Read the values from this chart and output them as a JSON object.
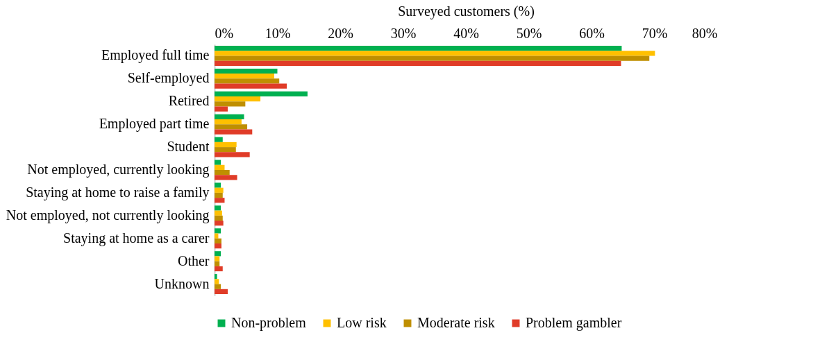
{
  "chart_data": {
    "type": "bar",
    "orientation": "horizontal",
    "xlabel": "Surveyed customers (%)",
    "categories": [
      "Employed full time",
      "Self-employed",
      "Retired",
      "Employed part time",
      "Student",
      "Not employed, currently looking",
      "Staying at home to raise a family",
      "Not employed, not currently looking",
      "Staying at home as a carer",
      "Other",
      "Unknown"
    ],
    "series": [
      {
        "name": "Non-problem",
        "color": "#00b050",
        "values": [
          64.8,
          10.0,
          14.8,
          4.7,
          1.3,
          1.0,
          1.0,
          1.0,
          1.0,
          1.0,
          0.4
        ]
      },
      {
        "name": "Low risk",
        "color": "#ffc000",
        "values": [
          70.1,
          9.5,
          7.3,
          4.3,
          3.5,
          1.6,
          1.4,
          1.2,
          0.6,
          0.8,
          0.7
        ]
      },
      {
        "name": "Moderate risk",
        "color": "#bf8f00",
        "values": [
          69.2,
          10.3,
          4.9,
          5.2,
          3.4,
          2.4,
          1.3,
          1.3,
          1.1,
          0.8,
          1.0
        ]
      },
      {
        "name": "Problem gambler",
        "color": "#e03c28",
        "values": [
          64.7,
          11.5,
          2.1,
          6.0,
          5.6,
          3.6,
          1.6,
          1.4,
          1.1,
          1.3,
          2.1
        ]
      }
    ],
    "xlim": [
      0,
      80
    ],
    "xticks": [
      {
        "value": 0,
        "label": "0%"
      },
      {
        "value": 10,
        "label": "10%"
      },
      {
        "value": 20,
        "label": "20%"
      },
      {
        "value": 30,
        "label": "30%"
      },
      {
        "value": 40,
        "label": "40%"
      },
      {
        "value": 50,
        "label": "50%"
      },
      {
        "value": 60,
        "label": "60%"
      },
      {
        "value": 70,
        "label": "70%"
      },
      {
        "value": 80,
        "label": "80%"
      }
    ],
    "grid": false,
    "legend": "bottom"
  }
}
